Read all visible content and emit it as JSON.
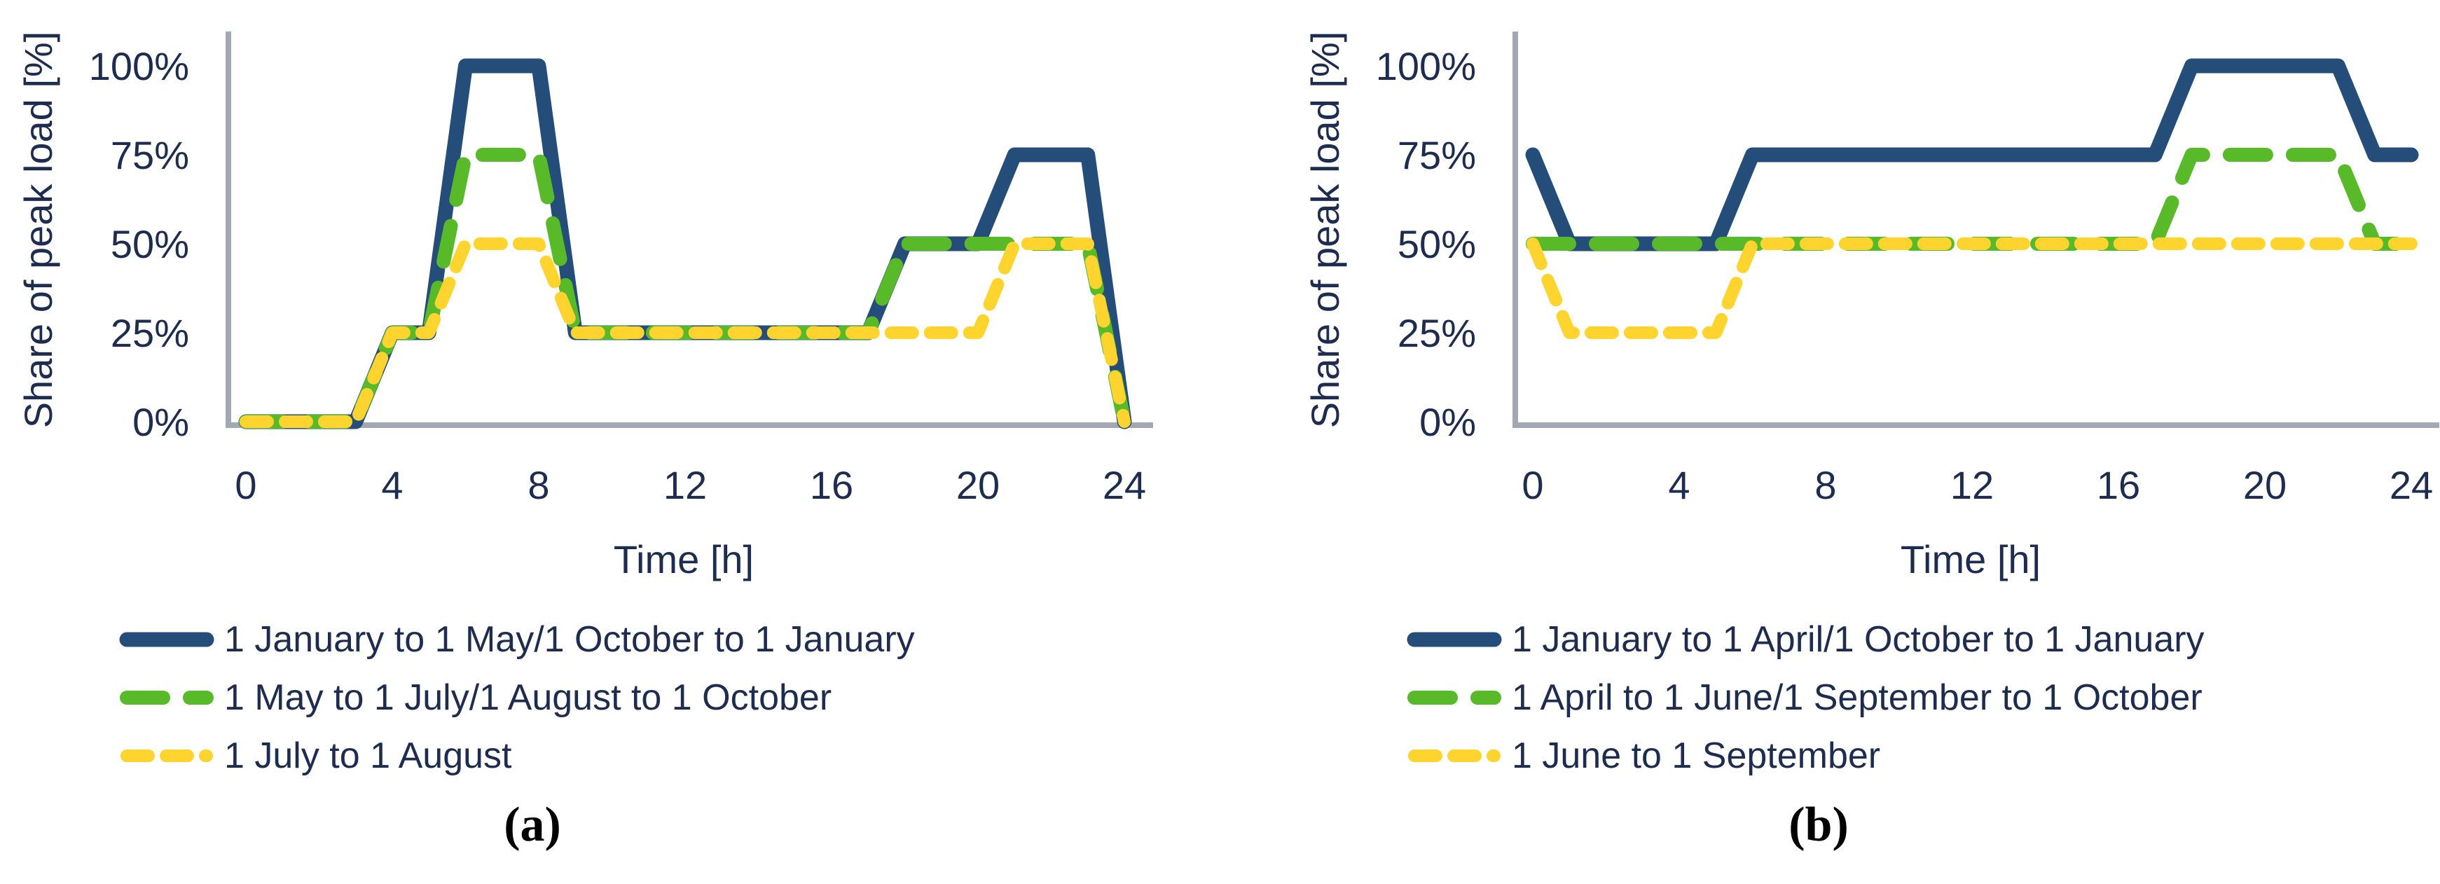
{
  "figure": {
    "ylabel": "Share of peak load [%]",
    "xlabel": "Time [h]",
    "colors": {
      "winter_line": "#254D79",
      "transition_line": "#58B929",
      "summer_line": "#FFD42E",
      "axis": "#A3A9B4",
      "text": "#1E2D4F"
    }
  },
  "chart_data": [
    {
      "type": "line",
      "panel_label": "(a)",
      "xlabel": "Time [h]",
      "ylabel": "Share of peak load [%]",
      "x_ticks": [
        0,
        4,
        8,
        12,
        16,
        20,
        24
      ],
      "y_tick_labels": [
        "0%",
        "25%",
        "50%",
        "75%",
        "100%"
      ],
      "xlim": [
        0,
        24
      ],
      "ylim": [
        0,
        100
      ],
      "grid": false,
      "legend_position": "below",
      "series": [
        {
          "name": "1 January to 1 May/1 October to 1 January",
          "color": "#254D79",
          "dash": "solid",
          "points": [
            [
              0,
              0
            ],
            [
              3,
              0
            ],
            [
              4,
              25
            ],
            [
              5,
              25
            ],
            [
              6,
              100
            ],
            [
              8,
              100
            ],
            [
              9,
              25
            ],
            [
              17,
              25
            ],
            [
              18,
              50
            ],
            [
              20,
              50
            ],
            [
              21,
              75
            ],
            [
              23,
              75
            ],
            [
              24,
              0
            ]
          ]
        },
        {
          "name": "1 May to 1 July/1 August to 1 October",
          "color": "#58B929",
          "dash": "long",
          "points": [
            [
              0,
              0
            ],
            [
              3,
              0
            ],
            [
              4,
              25
            ],
            [
              5,
              25
            ],
            [
              6,
              75
            ],
            [
              8,
              75
            ],
            [
              9,
              25
            ],
            [
              17,
              25
            ],
            [
              18,
              50
            ],
            [
              23,
              50
            ],
            [
              24,
              0
            ]
          ]
        },
        {
          "name": "1 July to 1 August",
          "color": "#FFD42E",
          "dash": "short",
          "points": [
            [
              0,
              0
            ],
            [
              3,
              0
            ],
            [
              4,
              25
            ],
            [
              5,
              25
            ],
            [
              6,
              50
            ],
            [
              8,
              50
            ],
            [
              9,
              25
            ],
            [
              20,
              25
            ],
            [
              21,
              50
            ],
            [
              23,
              50
            ],
            [
              24,
              0
            ]
          ]
        }
      ]
    },
    {
      "type": "line",
      "panel_label": "(b)",
      "xlabel": "Time [h]",
      "ylabel": "Share of peak load [%]",
      "x_ticks": [
        0,
        4,
        8,
        12,
        16,
        20,
        24
      ],
      "y_tick_labels": [
        "0%",
        "25%",
        "50%",
        "75%",
        "100%"
      ],
      "xlim": [
        0,
        24
      ],
      "ylim": [
        0,
        100
      ],
      "grid": false,
      "legend_position": "below",
      "series": [
        {
          "name": "1 January to 1 April/1 October to 1 January",
          "color": "#254D79",
          "dash": "solid",
          "points": [
            [
              0,
              75
            ],
            [
              1,
              50
            ],
            [
              5,
              50
            ],
            [
              6,
              75
            ],
            [
              17,
              75
            ],
            [
              18,
              100
            ],
            [
              22,
              100
            ],
            [
              23,
              75
            ],
            [
              24,
              75
            ]
          ]
        },
        {
          "name": "1 April to 1 June/1 September to 1 October",
          "color": "#58B929",
          "dash": "long",
          "points": [
            [
              0,
              50
            ],
            [
              17,
              50
            ],
            [
              18,
              75
            ],
            [
              22,
              75
            ],
            [
              23,
              50
            ],
            [
              24,
              50
            ]
          ]
        },
        {
          "name": "1 June to 1 September",
          "color": "#FFD42E",
          "dash": "short",
          "points": [
            [
              0,
              50
            ],
            [
              1,
              25
            ],
            [
              5,
              25
            ],
            [
              6,
              50
            ],
            [
              24,
              50
            ]
          ]
        }
      ]
    }
  ]
}
